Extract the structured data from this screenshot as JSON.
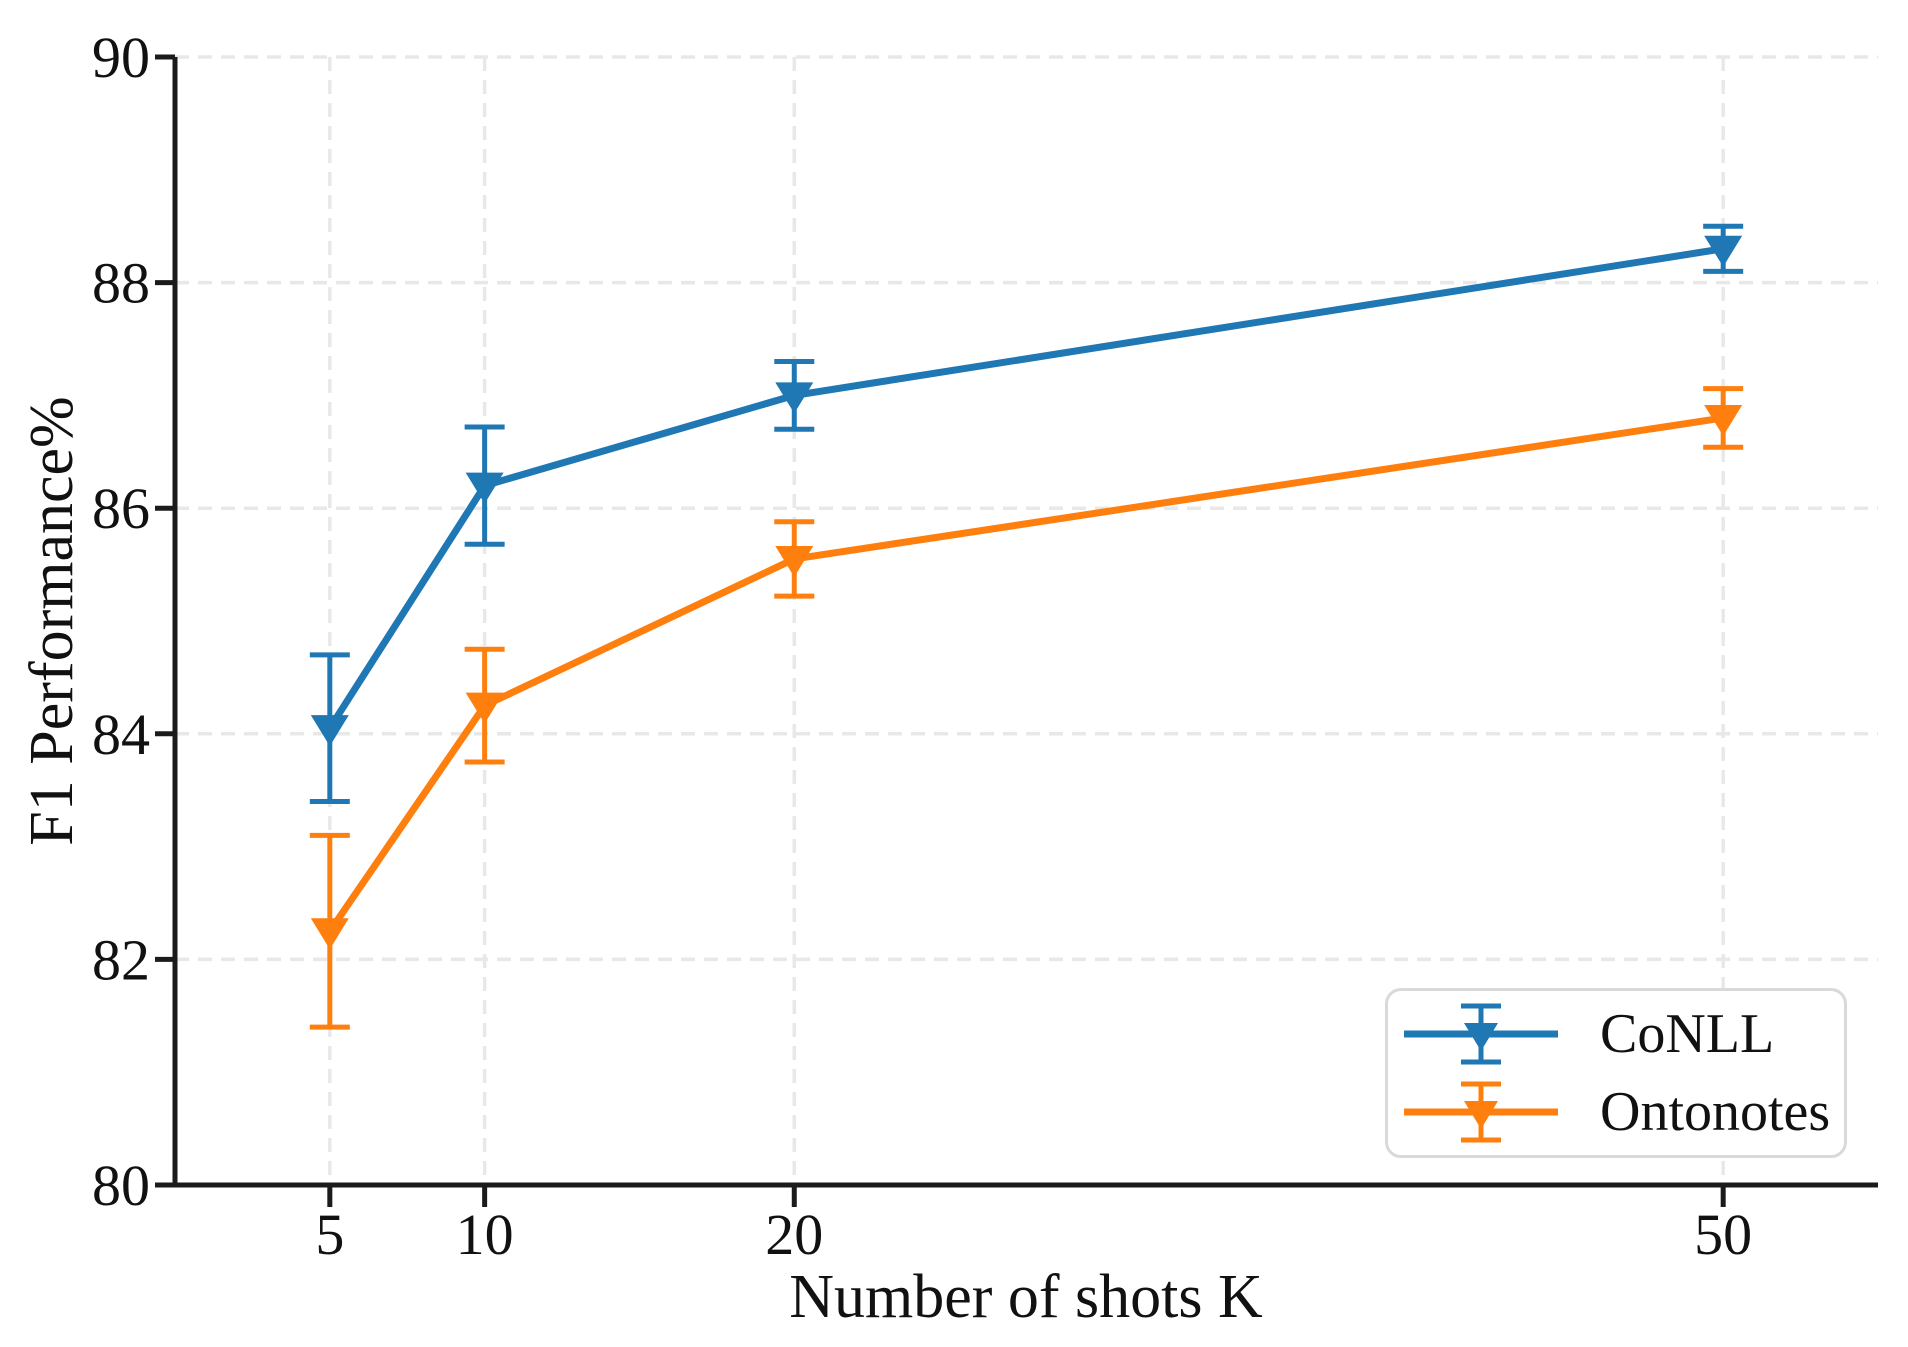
{
  "figure": {
    "background": "#ffffff",
    "spine_color": "#1b1b1b",
    "grid_color": "#e8e8e8",
    "text_color": "#111111"
  },
  "chart_data": {
    "type": "line",
    "title": "",
    "xlabel": "Number of shots K",
    "ylabel": "F1 Performance%",
    "x": [
      5,
      10,
      20,
      50
    ],
    "x_tick_labels": [
      "5",
      "10",
      "20",
      "50"
    ],
    "y_ticks": [
      80,
      82,
      84,
      86,
      88,
      90
    ],
    "y_tick_labels": [
      "80",
      "82",
      "84",
      "86",
      "88",
      "90"
    ],
    "xlim": [
      0,
      55
    ],
    "ylim": [
      80,
      90
    ],
    "grid": "dashed",
    "legend_position": "lower right",
    "marker": "triangle-down",
    "series": [
      {
        "name": "CoNLL",
        "color": "#1f77b4",
        "values": [
          84.05,
          86.2,
          87.0,
          88.3
        ],
        "errors": [
          0.65,
          0.52,
          0.3,
          0.2
        ]
      },
      {
        "name": "Ontonotes",
        "color": "#ff7f0e",
        "values": [
          82.25,
          84.25,
          85.55,
          86.8
        ],
        "errors": [
          0.85,
          0.5,
          0.33,
          0.26
        ]
      }
    ]
  }
}
